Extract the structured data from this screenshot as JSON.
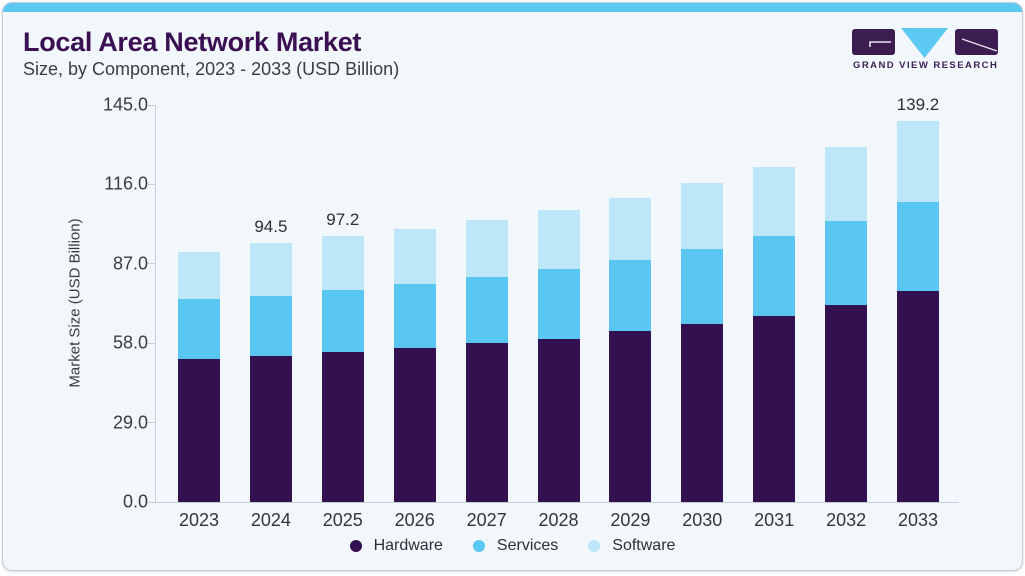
{
  "header": {
    "title": "Local Area Network Market",
    "subtitle": "Size, by Component, 2023 - 2033 (USD Billion)"
  },
  "logo": {
    "brand": "GRAND VIEW RESEARCH",
    "purple": "#3c1d52",
    "blue": "#5cc9f2"
  },
  "chart_data": {
    "type": "bar",
    "stacked": true,
    "title": "Local Area Network Market Size, by Component, 2023 - 2033 (USD Billion)",
    "ylabel": "Market Size (USD Billion)",
    "xlabel": "",
    "ylim": [
      0,
      145
    ],
    "yticks": [
      "0.0",
      "29.0",
      "58.0",
      "87.0",
      "116.0",
      "145.0"
    ],
    "grid": false,
    "legend_position": "bottom",
    "categories": [
      "2023",
      "2024",
      "2025",
      "2026",
      "2027",
      "2028",
      "2029",
      "2030",
      "2031",
      "2032",
      "2033"
    ],
    "series": [
      {
        "name": "Hardware",
        "color": "#331150",
        "values": [
          52.2,
          53.4,
          54.9,
          56.3,
          58.0,
          59.7,
          62.3,
          65.1,
          67.9,
          71.8,
          77.0
        ]
      },
      {
        "name": "Services",
        "color": "#59c7f2",
        "values": [
          21.9,
          21.9,
          22.7,
          23.4,
          24.2,
          25.4,
          26.1,
          27.3,
          29.3,
          30.9,
          32.5
        ]
      },
      {
        "name": "Software",
        "color": "#bde7f8",
        "values": [
          17.4,
          19.2,
          19.6,
          20.0,
          20.7,
          21.6,
          22.7,
          24.0,
          25.2,
          26.9,
          29.7
        ]
      }
    ],
    "totals": [
      91.5,
      94.5,
      97.2,
      99.7,
      102.9,
      106.7,
      111.1,
      116.4,
      122.4,
      129.6,
      139.2
    ],
    "bar_labels": [
      "",
      "94.5",
      "97.2",
      "",
      "",
      "",
      "",
      "",
      "",
      "",
      "139.2"
    ]
  }
}
